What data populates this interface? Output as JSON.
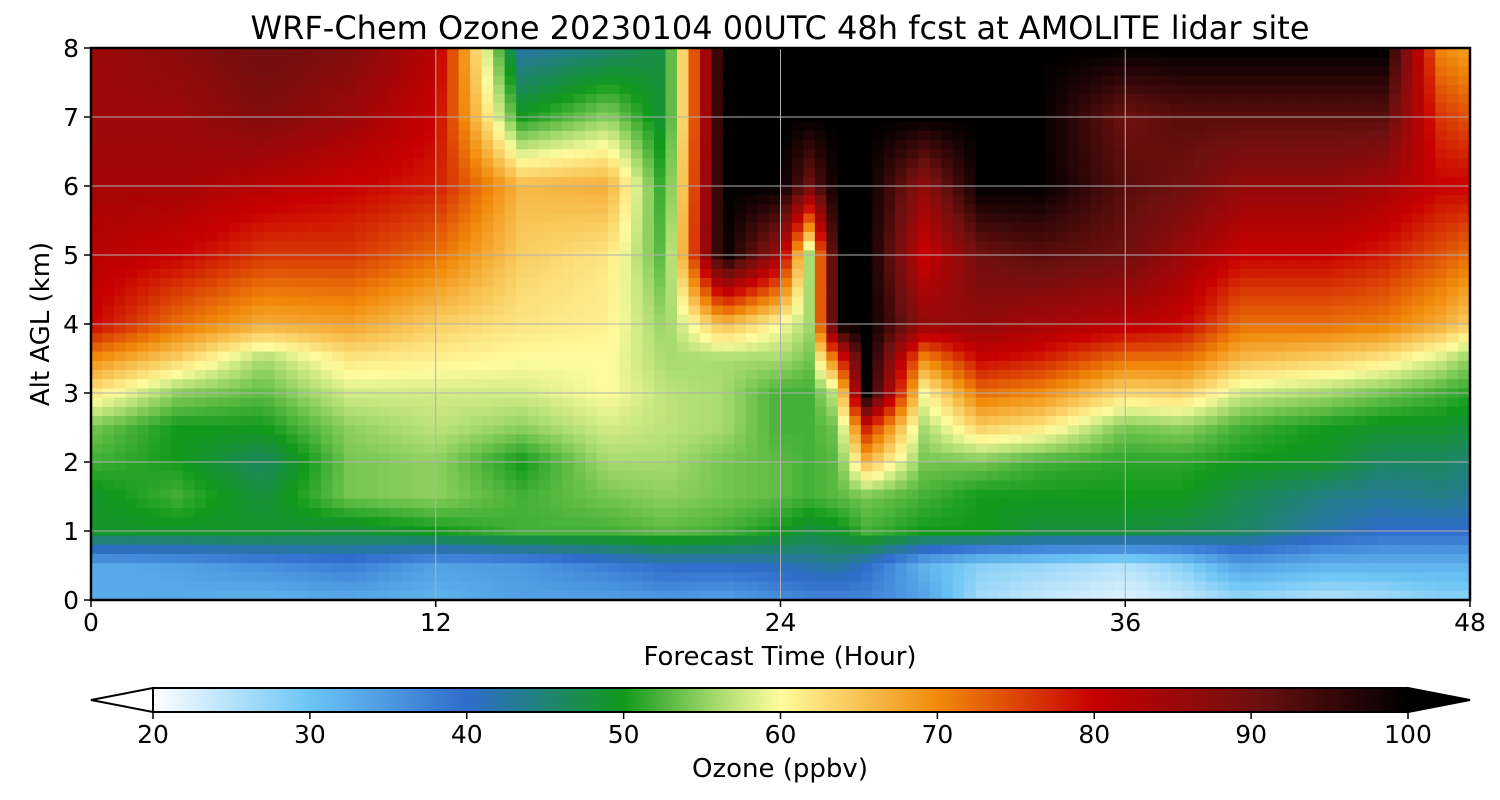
{
  "chart_data": {
    "type": "heatmap",
    "title": "WRF-Chem Ozone  20230104 00UTC 48h fcst at AMOLITE lidar site",
    "xlabel": "Forecast Time (Hour)",
    "ylabel": "Alt AGL (km)",
    "xlim": [
      0,
      48
    ],
    "ylim": [
      0,
      8
    ],
    "x_ticks": [
      "0",
      "12",
      "24",
      "36",
      "48"
    ],
    "y_ticks": [
      "0",
      "1",
      "2",
      "3",
      "4",
      "5",
      "6",
      "7",
      "8"
    ],
    "grid": true,
    "colorbar": {
      "label": "Ozone  (ppbv)",
      "min": 20,
      "max": 100,
      "ticks": [
        "20",
        "30",
        "40",
        "50",
        "60",
        "70",
        "80",
        "90",
        "100"
      ],
      "extend": "both",
      "orientation": "horizontal",
      "color_stops": [
        {
          "v": 20,
          "c": "#ffffff"
        },
        {
          "v": 30,
          "c": "#6cc5f5"
        },
        {
          "v": 40,
          "c": "#2f6ccc"
        },
        {
          "v": 50,
          "c": "#119a1b"
        },
        {
          "v": 56,
          "c": "#a8db6e"
        },
        {
          "v": 60,
          "c": "#fffc9e"
        },
        {
          "v": 70,
          "c": "#f18a0a"
        },
        {
          "v": 80,
          "c": "#c80000"
        },
        {
          "v": 90,
          "c": "#701010"
        },
        {
          "v": 100,
          "c": "#000000"
        }
      ],
      "under_color": "#ffffff",
      "over_color": "#000000"
    },
    "heights_km": [
      0,
      0.5,
      1,
      1.5,
      2,
      2.5,
      3,
      3.5,
      4,
      5,
      6,
      7,
      8
    ],
    "times_h": [
      0,
      3,
      6,
      9,
      12,
      15,
      18,
      20,
      22,
      24,
      25,
      26,
      27,
      29,
      31,
      33,
      36,
      38,
      40,
      43,
      45,
      47,
      48
    ],
    "ozone_ppbv": [
      [
        33,
        33,
        49,
        49,
        52,
        54,
        62,
        70,
        80,
        82,
        84,
        85,
        85
      ],
      [
        33,
        34,
        49,
        52,
        50,
        50,
        55,
        64,
        72,
        80,
        84,
        85,
        87
      ],
      [
        32,
        36,
        49,
        48,
        46,
        50,
        53,
        56,
        67,
        76,
        82,
        88,
        90
      ],
      [
        33,
        38,
        48,
        54,
        54,
        55,
        58,
        62,
        68,
        76,
        80,
        85,
        88
      ],
      [
        32,
        34,
        50,
        55,
        55,
        57,
        58,
        61,
        64,
        72,
        78,
        80,
        82
      ],
      [
        34,
        35,
        52,
        52,
        50,
        55,
        58,
        60,
        62,
        64,
        66,
        50,
        42
      ],
      [
        34,
        38,
        52,
        54,
        56,
        58,
        60,
        60,
        61,
        62,
        67,
        55,
        45
      ],
      [
        35,
        40,
        53,
        55,
        56,
        57,
        57,
        56,
        55,
        52,
        50,
        48,
        48
      ],
      [
        34,
        40,
        52,
        54,
        54,
        56,
        56,
        56,
        66,
        100,
        100,
        100,
        100
      ],
      [
        36,
        41,
        50,
        53,
        53,
        52,
        52,
        56,
        60,
        84,
        100,
        100,
        100
      ],
      [
        37,
        42,
        48,
        52,
        52,
        52,
        52,
        54,
        56,
        56,
        90,
        100,
        100
      ],
      [
        37,
        43,
        49,
        53,
        53,
        54,
        58,
        74,
        100,
        100,
        100,
        100,
        100
      ],
      [
        37,
        40,
        52,
        54,
        66,
        78,
        100,
        100,
        100,
        100,
        100,
        100,
        100
      ],
      [
        34,
        32,
        50,
        52,
        54,
        56,
        60,
        70,
        86,
        80,
        86,
        100,
        100
      ],
      [
        26,
        28,
        50,
        50,
        54,
        64,
        72,
        80,
        86,
        90,
        100,
        100,
        100
      ],
      [
        24,
        27,
        48,
        50,
        52,
        62,
        70,
        78,
        84,
        92,
        100,
        100,
        100
      ],
      [
        22,
        25,
        48,
        50,
        51,
        54,
        63,
        72,
        82,
        90,
        92,
        90,
        100
      ],
      [
        24,
        28,
        47,
        50,
        51,
        55,
        64,
        72,
        80,
        85,
        90,
        92,
        100
      ],
      [
        27,
        34,
        46,
        47,
        50,
        52,
        58,
        66,
        72,
        80,
        86,
        92,
        100
      ],
      [
        25,
        32,
        42,
        44,
        49,
        50,
        56,
        64,
        72,
        80,
        86,
        92,
        100
      ],
      [
        26,
        32,
        40,
        43,
        46,
        49,
        54,
        62,
        71,
        78,
        84,
        92,
        100
      ],
      [
        28,
        32,
        40,
        44,
        46,
        49,
        52,
        58,
        67,
        74,
        80,
        76,
        70
      ],
      [
        28,
        32,
        40,
        43,
        45,
        48,
        51,
        55,
        64,
        72,
        80,
        74,
        68
      ]
    ]
  }
}
